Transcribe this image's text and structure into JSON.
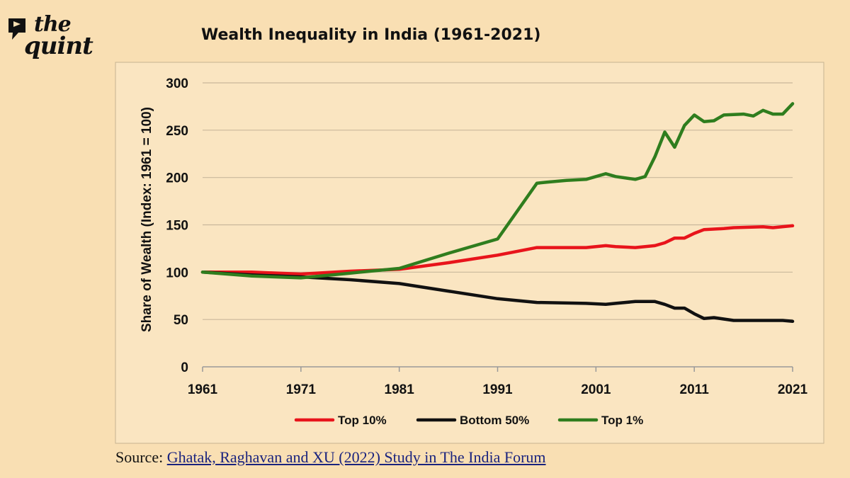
{
  "brand": {
    "line1": "the",
    "line2": "quint"
  },
  "source": {
    "prefix": "Source: ",
    "link_text": "Ghatak, Raghavan and XU (2022) Study in The India Forum"
  },
  "chart_data": {
    "type": "line",
    "title": "Wealth Inequality in India (1961-2021)",
    "xlabel": "",
    "ylabel": "Share of Wealth (Index: 1961 = 100)",
    "xlim": [
      1961,
      2021
    ],
    "ylim": [
      0,
      300
    ],
    "xticks": [
      1961,
      1971,
      1981,
      1991,
      2001,
      2011,
      2021
    ],
    "yticks": [
      0,
      50,
      100,
      150,
      200,
      250,
      300
    ],
    "grid": "horizontal",
    "legend_position": "bottom",
    "series": [
      {
        "name": "Top 10%",
        "color": "#e8141b",
        "points": [
          [
            1961,
            100
          ],
          [
            1966,
            100
          ],
          [
            1971,
            98
          ],
          [
            1976,
            101
          ],
          [
            1981,
            103
          ],
          [
            1986,
            110
          ],
          [
            1991,
            118
          ],
          [
            1995,
            126
          ],
          [
            2000,
            126
          ],
          [
            2002,
            128
          ],
          [
            2003,
            127
          ],
          [
            2005,
            126
          ],
          [
            2007,
            128
          ],
          [
            2008,
            131
          ],
          [
            2009,
            136
          ],
          [
            2010,
            136
          ],
          [
            2011,
            141
          ],
          [
            2012,
            145
          ],
          [
            2014,
            146
          ],
          [
            2015,
            147
          ],
          [
            2018,
            148
          ],
          [
            2019,
            147
          ],
          [
            2021,
            149
          ]
        ]
      },
      {
        "name": "Bottom 50%",
        "color": "#111111",
        "points": [
          [
            1961,
            100
          ],
          [
            1966,
            97
          ],
          [
            1971,
            95
          ],
          [
            1976,
            92
          ],
          [
            1981,
            88
          ],
          [
            1986,
            80
          ],
          [
            1991,
            72
          ],
          [
            1995,
            68
          ],
          [
            2000,
            67
          ],
          [
            2002,
            66
          ],
          [
            2003,
            67
          ],
          [
            2005,
            69
          ],
          [
            2007,
            69
          ],
          [
            2008,
            66
          ],
          [
            2009,
            62
          ],
          [
            2010,
            62
          ],
          [
            2011,
            56
          ],
          [
            2012,
            51
          ],
          [
            2013,
            52
          ],
          [
            2015,
            49
          ],
          [
            2020,
            49
          ],
          [
            2021,
            48
          ]
        ]
      },
      {
        "name": "Top 1%",
        "color": "#2f7d1e",
        "points": [
          [
            1961,
            100
          ],
          [
            1966,
            96
          ],
          [
            1971,
            94
          ],
          [
            1976,
            99
          ],
          [
            1981,
            104
          ],
          [
            1986,
            120
          ],
          [
            1991,
            135
          ],
          [
            1995,
            194
          ],
          [
            1996,
            195
          ],
          [
            1998,
            197
          ],
          [
            2000,
            198
          ],
          [
            2002,
            204
          ],
          [
            2003,
            201
          ],
          [
            2005,
            198
          ],
          [
            2006,
            201
          ],
          [
            2007,
            222
          ],
          [
            2008,
            248
          ],
          [
            2009,
            232
          ],
          [
            2010,
            255
          ],
          [
            2011,
            266
          ],
          [
            2012,
            259
          ],
          [
            2013,
            260
          ],
          [
            2014,
            266
          ],
          [
            2016,
            267
          ],
          [
            2017,
            265
          ],
          [
            2018,
            271
          ],
          [
            2019,
            267
          ],
          [
            2020,
            267
          ],
          [
            2021,
            278
          ]
        ]
      }
    ]
  }
}
